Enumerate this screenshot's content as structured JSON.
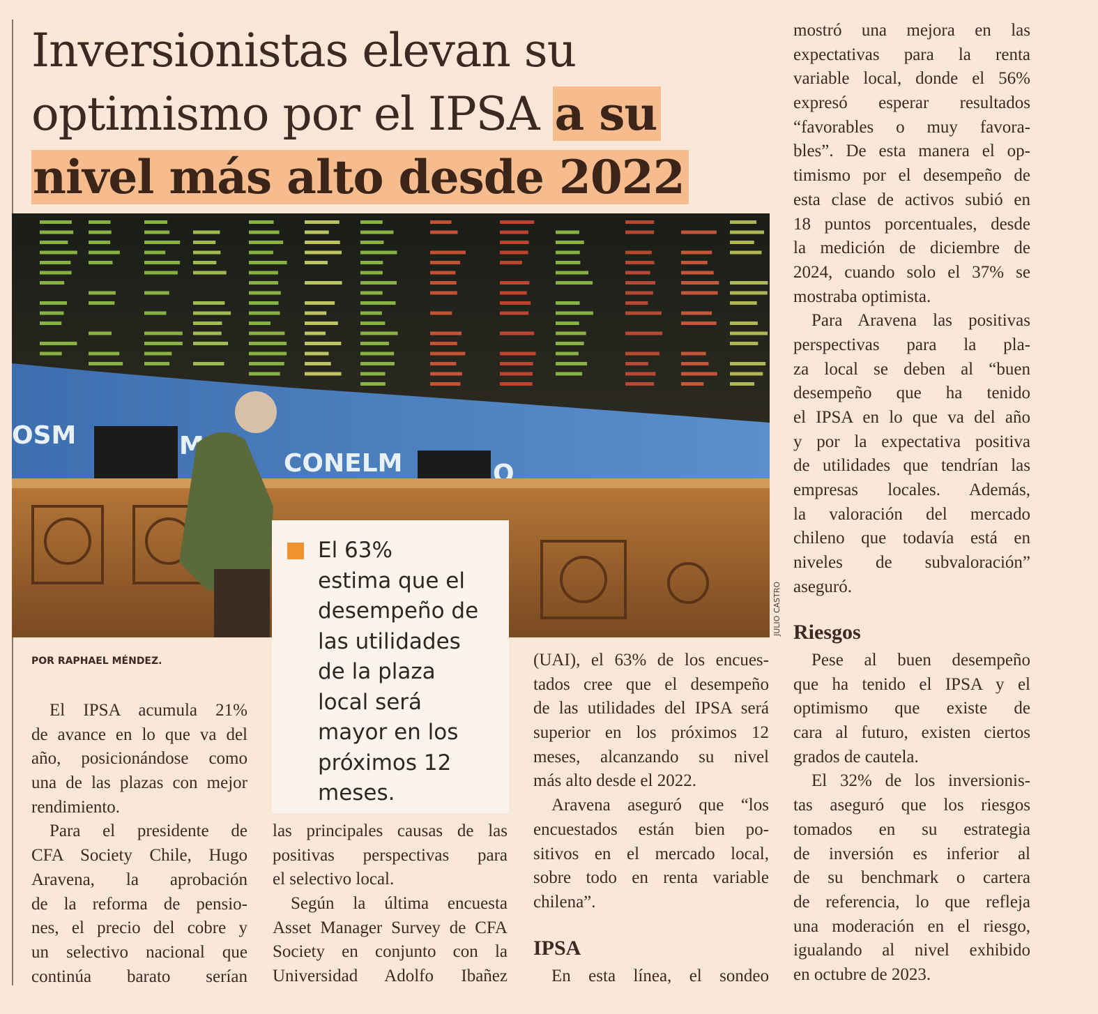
{
  "headline": {
    "line1": "Inversionistas elevan su",
    "line2_light": "optimismo por el IPSA ",
    "line2_bold": "a su",
    "line3_bold": "nivel más alto desde 2022"
  },
  "photo": {
    "wall_text_left": "OSM",
    "wall_text_mid": "M",
    "wall_text_right": "CONELM",
    "wall_text_end": "O",
    "credit": "JULIO CASTRO"
  },
  "colors": {
    "highlight": "#f6bc8d",
    "bullet": "#f0922f",
    "paper": "#f9e7d8"
  },
  "callout": {
    "bullet_icon": "orange-square",
    "lines": [
      "El 63%",
      "estima que el",
      "desempeño de",
      "las utilidades",
      "de la plaza",
      "local será",
      "mayor en los",
      "próximos 12",
      "meses."
    ]
  },
  "byline": "POR RAPHAEL MÉNDEZ.",
  "columns": {
    "col1": [
      {
        "lines": [
          "El IPSA acumula 21%",
          "de avance en lo que va del",
          "año, posicionándose como",
          "una de las plazas con mejor",
          "rendimiento."
        ]
      },
      {
        "lines": [
          "Para el presidente de",
          "CFA Society Chile, Hugo",
          "Aravena, la aprobación",
          "de la reforma de pensio-",
          "nes, el precio del cobre y",
          "un selectivo nacional que",
          "continúa barato serían"
        ],
        "open": true
      }
    ],
    "col2": [
      {
        "lines": [
          "las principales causas de las",
          "positivas perspectivas para",
          "el selectivo local."
        ],
        "cont": true
      },
      {
        "lines": [
          "Según la última encuesta",
          "Asset Manager Survey de CFA",
          "Society en conjunto con la",
          "Universidad Adolfo Ibañez"
        ],
        "open": true
      }
    ],
    "col3a": [
      {
        "lines": [
          "(UAI), el 63% de los encues-",
          "tados cree que el desempeño",
          "de las utilidades del IPSA será",
          "superior en los próximos 12",
          "meses, alcanzando su nivel",
          "más alto desde el 2022."
        ],
        "cont": true
      },
      {
        "lines": [
          "Aravena aseguró que “los",
          "encuestados están bien po-",
          "sitivos en el mercado local,",
          "sobre todo en renta variable",
          "chilena”."
        ]
      }
    ],
    "col3_heading": "IPSA",
    "col3b": [
      {
        "lines": [
          "En esta línea, el sondeo"
        ],
        "open": true
      }
    ],
    "col4a": [
      {
        "lines": [
          "mostró una mejora en las",
          "expectativas para la renta",
          "variable local, donde el 56%",
          "expresó esperar resultados",
          "“favorables o muy favora-",
          "bles”. De esta manera el op-",
          "timismo por el desempeño de",
          "esta clase de activos subió en",
          "18 puntos porcentuales, desde",
          "la medición de diciembre de",
          "2024, cuando solo el 37% se",
          "mostraba optimista."
        ],
        "cont": true
      },
      {
        "lines": [
          "Para Aravena las positivas",
          "perspectivas para la pla-",
          "za local se deben al “buen",
          "desempeño que ha tenido",
          "el IPSA en lo que va del año",
          "y por la expectativa positiva",
          "de utilidades que tendrían las",
          "empresas locales. Además,",
          "la valoración del mercado",
          "chileno que todavía está en",
          "niveles de subvaloración”",
          "aseguró."
        ]
      }
    ],
    "col4_heading": "Riesgos",
    "col4b": [
      {
        "lines": [
          "Pese al buen desempeño",
          "que ha tenido el IPSA y el",
          "optimismo que existe de",
          "cara al futuro, existen ciertos",
          "grados de cautela."
        ]
      },
      {
        "lines": [
          "El 32% de los inversionis-",
          "tas aseguró que los riesgos",
          "tomados en su estrategia",
          "de inversión es inferior al",
          "de su benchmark o cartera",
          "de referencia, lo que refleja",
          "una moderación en el riesgo,",
          "igualando al nivel exhibido",
          "en octubre de 2023."
        ]
      }
    ]
  }
}
